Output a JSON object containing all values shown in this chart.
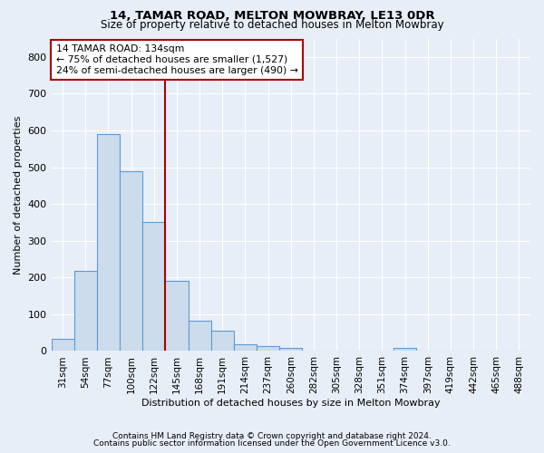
{
  "title1": "14, TAMAR ROAD, MELTON MOWBRAY, LE13 0DR",
  "title2": "Size of property relative to detached houses in Melton Mowbray",
  "xlabel": "Distribution of detached houses by size in Melton Mowbray",
  "ylabel": "Number of detached properties",
  "categories": [
    "31sqm",
    "54sqm",
    "77sqm",
    "100sqm",
    "122sqm",
    "145sqm",
    "168sqm",
    "191sqm",
    "214sqm",
    "237sqm",
    "260sqm",
    "282sqm",
    "305sqm",
    "328sqm",
    "351sqm",
    "374sqm",
    "397sqm",
    "419sqm",
    "442sqm",
    "465sqm",
    "488sqm"
  ],
  "bar_heights": [
    33,
    218,
    590,
    490,
    350,
    190,
    83,
    55,
    18,
    13,
    8,
    0,
    0,
    0,
    0,
    8,
    0,
    0,
    0,
    0,
    0
  ],
  "bar_color": "#ccdcec",
  "bar_edge_color": "#5b9bd5",
  "bg_color": "#e8eef8",
  "grid_color": "#ffffff",
  "annotation_text": "14 TAMAR ROAD: 134sqm\n← 75% of detached houses are smaller (1,527)\n24% of semi-detached houses are larger (490) →",
  "vline_color": "#aa0000",
  "annotation_box_color": "#aa0000",
  "ylim": [
    0,
    850
  ],
  "yticks": [
    0,
    100,
    200,
    300,
    400,
    500,
    600,
    700,
    800
  ],
  "footnote1": "Contains HM Land Registry data © Crown copyright and database right 2024.",
  "footnote2": "Contains public sector information licensed under the Open Government Licence v3.0."
}
